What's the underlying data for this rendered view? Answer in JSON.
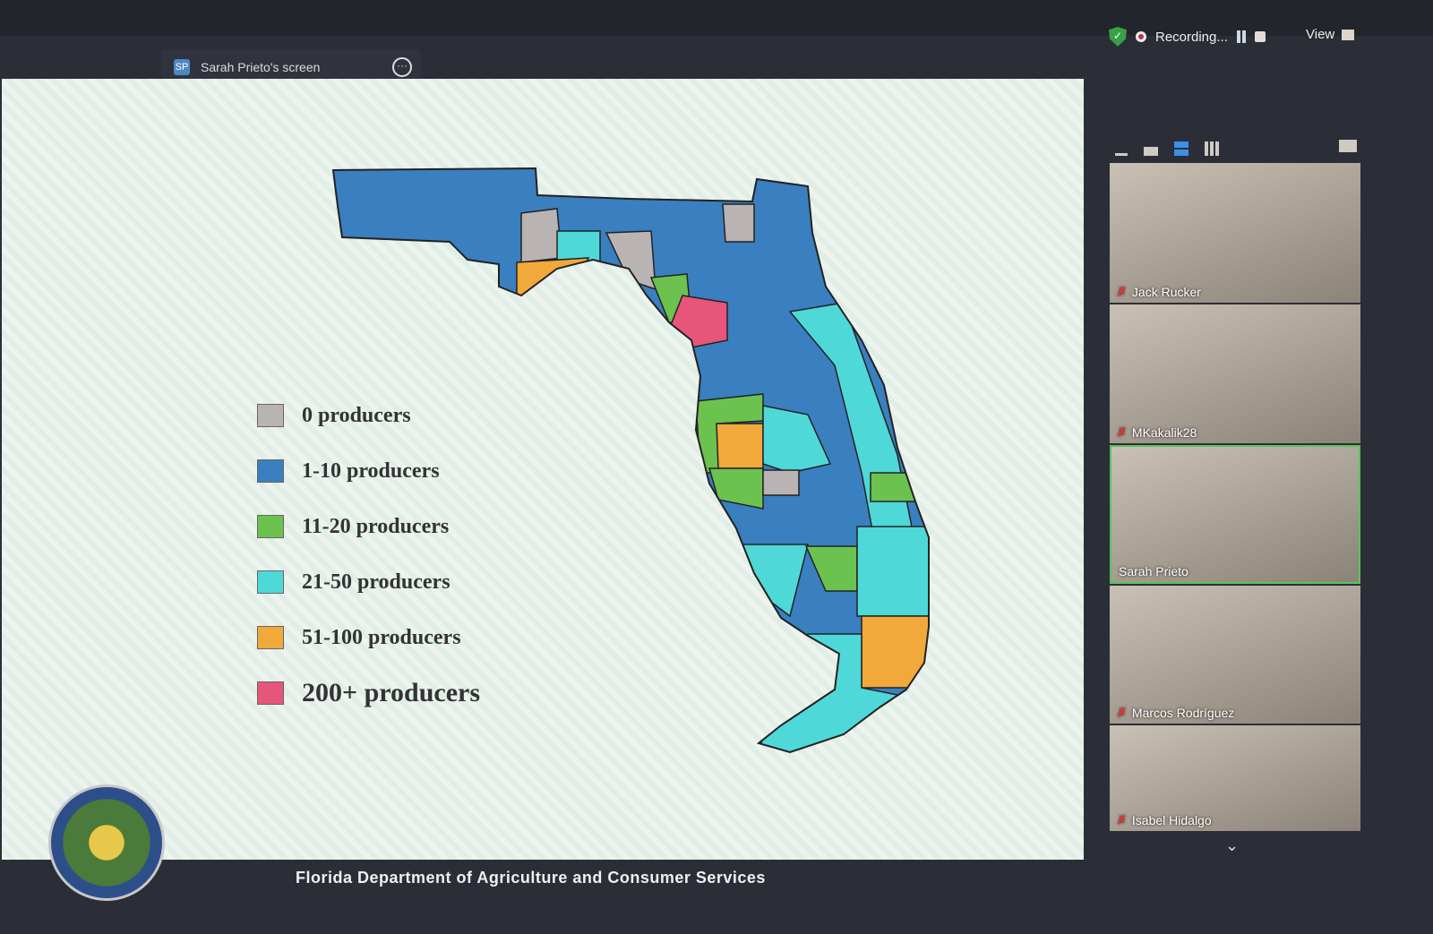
{
  "share": {
    "badge": "SP",
    "label": "Sarah Prieto's screen"
  },
  "recording": {
    "label": "Recording..."
  },
  "view": {
    "label": "View"
  },
  "legend": [
    {
      "label": "0 producers",
      "color": "#b9b3b3"
    },
    {
      "label": "1-10 producers",
      "color": "#3a7fbf"
    },
    {
      "label": "11-20 producers",
      "color": "#6cc24f"
    },
    {
      "label": "21-50 producers",
      "color": "#4fd8d8"
    },
    {
      "label": "51-100 producers",
      "color": "#f0a93a"
    },
    {
      "label": "200+ producers",
      "color": "#e8557a"
    }
  ],
  "footer": "Florida Department of Agriculture and Consumer Services",
  "participants": [
    {
      "name": "Jack Rucker",
      "muted": true
    },
    {
      "name": "MKakalik28",
      "muted": true
    },
    {
      "name": "Sarah Prieto",
      "muted": false,
      "active": true
    },
    {
      "name": "Marcos Rodríguez",
      "muted": true
    },
    {
      "name": "Isabel Hidalgo",
      "muted": true
    }
  ]
}
